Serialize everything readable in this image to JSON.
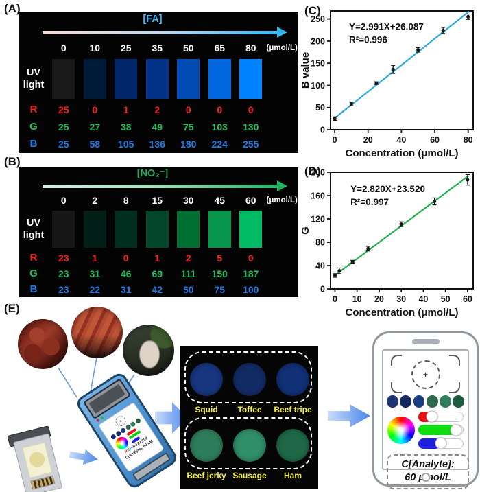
{
  "panel_a": {
    "label": "(A)",
    "title": "[FA]",
    "title_color": "#35b5f2",
    "arrow_gradient": [
      "#f5dad4",
      "#c3d9ee",
      "#35b5f2"
    ],
    "unit": "(μmol/L)",
    "uv": [
      "UV",
      "light"
    ],
    "concentrations": [
      "0",
      "10",
      "25",
      "35",
      "50",
      "65",
      "80"
    ],
    "swatch_colors": [
      "rgb(25,25,25)",
      "rgb(0,27,58)",
      "rgb(1,38,105)",
      "rgb(2,49,136)",
      "rgb(0,75,180)",
      "rgb(0,103,224)",
      "rgb(0,130,255)"
    ],
    "rgb_rows": [
      {
        "label": "R",
        "color": "#ff2020",
        "values": [
          "25",
          "0",
          "1",
          "2",
          "0",
          "0",
          "0"
        ]
      },
      {
        "label": "G",
        "color": "#1fbf5c",
        "values": [
          "25",
          "27",
          "38",
          "49",
          "75",
          "103",
          "130"
        ]
      },
      {
        "label": "B",
        "color": "#1e7ce8",
        "values": [
          "25",
          "58",
          "105",
          "136",
          "180",
          "224",
          "255"
        ]
      }
    ]
  },
  "panel_b": {
    "label": "(B)",
    "title": "[NO₂⁻]",
    "title_color": "#1fae5e",
    "arrow_gradient": [
      "#d5eee2",
      "#9fdcba",
      "#22b365"
    ],
    "unit": "(μmol/L)",
    "uv": [
      "UV",
      "light"
    ],
    "concentrations": [
      "0",
      "2",
      "8",
      "15",
      "30",
      "45",
      "60"
    ],
    "swatch_colors": [
      "rgb(23,23,23)",
      "rgb(1,31,22)",
      "rgb(0,46,31)",
      "rgb(1,69,42)",
      "rgb(2,111,50)",
      "rgb(5,150,75)",
      "rgb(0,187,100)"
    ],
    "rgb_rows": [
      {
        "label": "R",
        "color": "#ff2020",
        "values": [
          "23",
          "1",
          "0",
          "1",
          "2",
          "5",
          "0"
        ]
      },
      {
        "label": "G",
        "color": "#1fbf5c",
        "values": [
          "23",
          "31",
          "46",
          "69",
          "111",
          "150",
          "187"
        ]
      },
      {
        "label": "B",
        "color": "#1e7ce8",
        "values": [
          "23",
          "22",
          "31",
          "42",
          "50",
          "75",
          "100"
        ]
      }
    ]
  },
  "chart_data": [
    {
      "id": "C",
      "panel_label": "(C)",
      "type": "scatter",
      "x": [
        0,
        10,
        25,
        35,
        50,
        65,
        80
      ],
      "y": [
        25,
        58,
        105,
        136,
        180,
        224,
        255
      ],
      "yerr": [
        4,
        4,
        3,
        9,
        5,
        7,
        6
      ],
      "fit": {
        "slope": 2.991,
        "intercept": 26.087,
        "label": "Y=2.991X+26.087",
        "r2_label": "R²=0.996",
        "color": "#29abe2",
        "x_range": [
          0,
          80.5
        ]
      },
      "xlabel": "Concentration (μmol/L)",
      "ylabel": "B value",
      "xlim": [
        -2.5,
        83
      ],
      "ylim": [
        0,
        268
      ],
      "xticks": [
        0,
        20,
        40,
        60,
        80
      ],
      "yticks": [
        0,
        50,
        100,
        150,
        200,
        250
      ],
      "point_color": "#1a1a1a",
      "ann_frac": [
        0.13,
        0.16
      ],
      "grid": false,
      "legend": "none"
    },
    {
      "id": "D",
      "panel_label": "(D)",
      "type": "scatter",
      "x": [
        0,
        2,
        8,
        15,
        30,
        45,
        60
      ],
      "y": [
        23,
        31,
        46,
        69,
        111,
        150,
        187
      ],
      "yerr": [
        3,
        5,
        3,
        4,
        4,
        6,
        9
      ],
      "fit": {
        "slope": 2.82,
        "intercept": 23.52,
        "label": "Y=2.820X+23.520",
        "r2_label": "R²=0.997",
        "color": "#22b14c",
        "x_range": [
          0,
          60.5
        ]
      },
      "xlabel": "Concentration (μmol/L)",
      "ylabel": "G",
      "xlim": [
        -2,
        62.5
      ],
      "ylim": [
        0,
        200
      ],
      "xticks": [
        0,
        10,
        20,
        30,
        40,
        50,
        60
      ],
      "yticks": [
        0,
        40,
        80,
        120,
        160,
        200
      ],
      "point_color": "#1a1a1a",
      "ann_frac": [
        0.14,
        0.17
      ],
      "grid": false,
      "legend": "none"
    }
  ],
  "panel_e": {
    "label": "(E)",
    "food_photos": [
      "beef-jerky",
      "sausages",
      "squid"
    ],
    "device": {
      "rgb_letters": [
        {
          "ch": "R",
          "color": "#e02020"
        },
        {
          "ch": "G",
          "color": "#18a85a"
        },
        {
          "ch": "B",
          "color": "#1e7ce8"
        }
      ],
      "rgb_values": ":0,187,100",
      "result": "C[Analyte]: 60 μM"
    },
    "samples_panel": {
      "label_color": "#f7ee3a",
      "groups": [
        {
          "labels": [
            "Squid",
            "Toffee",
            "Beef tripe"
          ],
          "colors": [
            "#17367f",
            "#122b66",
            "#113077"
          ]
        },
        {
          "labels": [
            "Beef jerky",
            "Sausage",
            "Ham"
          ],
          "colors": [
            "#2e7d5a",
            "#2f8f68",
            "#1e6847"
          ]
        }
      ]
    },
    "phone": {
      "dot_colors": [
        "#1d3373",
        "#15295f",
        "#183d80",
        "#2d6b4e",
        "#2f7d5b",
        "#1e5b3e"
      ],
      "sliders": [
        {
          "color": "#ee1010",
          "fill": 30
        },
        {
          "color": "#10dd10",
          "fill": 85
        },
        {
          "color": "#2020e0",
          "fill": 50
        }
      ],
      "result_line1": "C[Analyte]:",
      "result_line2": "60 μmol/L"
    }
  }
}
